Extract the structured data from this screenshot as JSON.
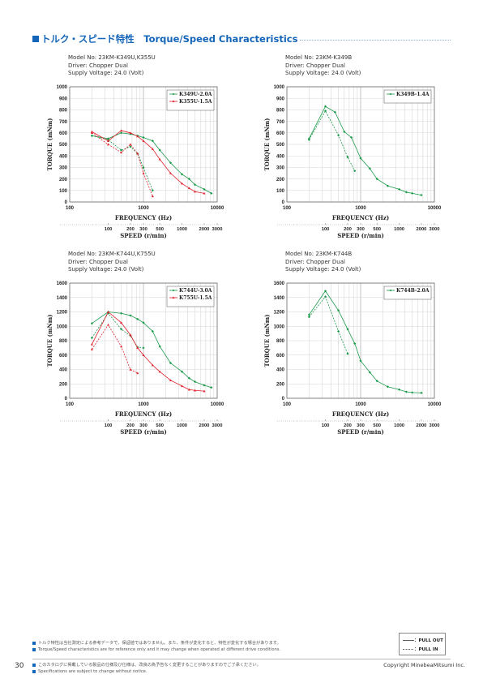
{
  "header": {
    "title": "トルク・スピード特性　Torque/Speed Characteristics"
  },
  "axis_labels": {
    "y": "TORQUE (mNm)",
    "x": "FREQUENCY (Hz)",
    "speed": "SPEED (r/min)"
  },
  "chart_data": [
    {
      "type": "line",
      "meta": [
        "Model No: 23KM-K349U,K355U",
        "Driver: Chopper Dual",
        "Supply Voltage: 24.0 (Volt)"
      ],
      "xlabel": "FREQUENCY (Hz)",
      "ylabel": "TORQUE (mNm)",
      "x_scale": "log",
      "xlim": [
        100,
        10000
      ],
      "ylim": [
        0,
        1000
      ],
      "x_ticks": [
        "100",
        "1000",
        "10000"
      ],
      "y_ticks": [
        0,
        100,
        200,
        300,
        400,
        500,
        600,
        700,
        800,
        900,
        1000
      ],
      "speed_axis": {
        "label": "SPEED (r/min)",
        "ticks": [
          100,
          200,
          300,
          500,
          1000,
          2000,
          3000
        ]
      },
      "series": [
        {
          "name": "K349U-2.0A",
          "color": "#1a9a4a",
          "style": "pull-out",
          "x": [
            200,
            333,
            500,
            666,
            833,
            1000,
            1333,
            1667,
            2333,
            3333,
            4167,
            5000,
            6667,
            8333
          ],
          "y": [
            575,
            550,
            600,
            590,
            575,
            560,
            530,
            450,
            340,
            240,
            200,
            150,
            110,
            75
          ]
        },
        {
          "name": "K349U-2.0A",
          "color": "#1a9a4a",
          "style": "pull-in",
          "x": [
            200,
            333,
            500,
            666,
            833,
            1000,
            1333
          ],
          "y": [
            575,
            540,
            450,
            480,
            420,
            300,
            100
          ]
        },
        {
          "name": "K355U-1.5A",
          "color": "#e0202a",
          "style": "pull-out",
          "x": [
            200,
            333,
            500,
            666,
            833,
            1000,
            1333,
            1667,
            2333,
            3333,
            4167,
            5000,
            6667
          ],
          "y": [
            610,
            530,
            620,
            600,
            570,
            530,
            460,
            370,
            250,
            160,
            120,
            90,
            75
          ]
        },
        {
          "name": "K355U-1.5A",
          "color": "#e0202a",
          "style": "pull-in",
          "x": [
            200,
            333,
            500,
            666,
            833,
            1000,
            1333
          ],
          "y": [
            600,
            500,
            430,
            500,
            420,
            250,
            50
          ]
        }
      ]
    },
    {
      "type": "line",
      "meta": [
        "Model No: 23KM-K349B",
        "Driver: Chopper Dual",
        "Supply Voltage: 24.0 (Volt)"
      ],
      "xlabel": "FREQUENCY (Hz)",
      "ylabel": "TORQUE (mNm)",
      "x_scale": "log",
      "xlim": [
        100,
        10000
      ],
      "ylim": [
        0,
        1000
      ],
      "x_ticks": [
        "100",
        "1000",
        "10000"
      ],
      "y_ticks": [
        0,
        100,
        200,
        300,
        400,
        500,
        600,
        700,
        800,
        900,
        1000
      ],
      "speed_axis": {
        "label": "SPEED (r/min)",
        "ticks": [
          100,
          200,
          300,
          500,
          1000,
          2000,
          3000
        ]
      },
      "series": [
        {
          "name": "K349B-1.4A",
          "color": "#1a9a4a",
          "style": "pull-out",
          "x": [
            200,
            333,
            450,
            600,
            750,
            1000,
            1333,
            1667,
            2333,
            3333,
            4167,
            5000,
            6667
          ],
          "y": [
            550,
            830,
            780,
            610,
            560,
            380,
            290,
            200,
            140,
            110,
            85,
            75,
            60
          ]
        },
        {
          "name": "K349B-1.4A",
          "color": "#1a9a4a",
          "style": "pull-in",
          "x": [
            200,
            333,
            500,
            666,
            833
          ],
          "y": [
            540,
            790,
            580,
            390,
            270
          ]
        }
      ]
    },
    {
      "type": "line",
      "meta": [
        "Model No: 23KM-K744U,K755U",
        "Driver: Chopper Dual",
        "Supply Voltage: 24.0 (Volt)"
      ],
      "xlabel": "FREQUENCY (Hz)",
      "ylabel": "TORQUE (mNm)",
      "x_scale": "log",
      "xlim": [
        100,
        10000
      ],
      "ylim": [
        0,
        1600
      ],
      "x_ticks": [
        "100",
        "1000",
        "10000"
      ],
      "y_ticks": [
        0,
        200,
        400,
        600,
        800,
        1000,
        1200,
        1400,
        1600
      ],
      "speed_axis": {
        "label": "SPEED (r/min)",
        "ticks": [
          100,
          200,
          300,
          500,
          1000,
          2000,
          3000
        ]
      },
      "series": [
        {
          "name": "K744U-3.0A",
          "color": "#1a9a4a",
          "style": "pull-out",
          "x": [
            200,
            333,
            500,
            666,
            833,
            1000,
            1333,
            1667,
            2333,
            3333,
            4167,
            5000,
            6667,
            8333
          ],
          "y": [
            1040,
            1200,
            1180,
            1150,
            1100,
            1050,
            930,
            720,
            490,
            370,
            280,
            230,
            180,
            150
          ]
        },
        {
          "name": "K744U-3.0A",
          "color": "#1a9a4a",
          "style": "pull-in",
          "x": [
            200,
            333,
            500,
            666,
            833,
            1000
          ],
          "y": [
            840,
            1180,
            960,
            870,
            710,
            700
          ]
        },
        {
          "name": "K755U-1.5A",
          "color": "#e0202a",
          "style": "pull-out",
          "x": [
            200,
            333,
            500,
            666,
            833,
            1000,
            1333,
            1667,
            2333,
            3333,
            4167,
            5000,
            6667
          ],
          "y": [
            750,
            1200,
            1050,
            880,
            700,
            600,
            460,
            370,
            250,
            170,
            120,
            110,
            100
          ]
        },
        {
          "name": "K755U-1.5A",
          "color": "#e0202a",
          "style": "pull-in",
          "x": [
            200,
            333,
            500,
            666,
            833
          ],
          "y": [
            680,
            1020,
            720,
            400,
            350
          ]
        }
      ]
    },
    {
      "type": "line",
      "meta": [
        "Model No: 23KM-K744B",
        "Driver: Chopper Dual",
        "Supply Voltage: 24.0 (Volt)"
      ],
      "xlabel": "FREQUENCY (Hz)",
      "ylabel": "TORQUE (mNm)",
      "x_scale": "log",
      "xlim": [
        100,
        10000
      ],
      "ylim": [
        0,
        1600
      ],
      "x_ticks": [
        "100",
        "1000",
        "10000"
      ],
      "y_ticks": [
        0,
        200,
        400,
        600,
        800,
        1000,
        1200,
        1400,
        1600
      ],
      "speed_axis": {
        "label": "SPEED (r/min)",
        "ticks": [
          100,
          200,
          300,
          500,
          1000,
          2000,
          3000
        ]
      },
      "series": [
        {
          "name": "K744B-2.0A",
          "color": "#1a9a4a",
          "style": "pull-out",
          "x": [
            200,
            333,
            500,
            666,
            833,
            1000,
            1333,
            1667,
            2333,
            3333,
            4167,
            5000,
            6667
          ],
          "y": [
            1160,
            1490,
            1220,
            960,
            760,
            520,
            360,
            240,
            160,
            120,
            90,
            80,
            75
          ]
        },
        {
          "name": "K744B-2.0A",
          "color": "#1a9a4a",
          "style": "pull-in",
          "x": [
            200,
            333,
            500,
            666
          ],
          "y": [
            1130,
            1410,
            930,
            620
          ]
        }
      ]
    }
  ],
  "footer": {
    "note1": "トルク特性は当社測定による参考データで、保証値ではありません。また、条件が変化すると、特性が変化する場合があります。",
    "note2": "Torque/Speed characteristics are for reference only and it may change when operated at different drive conditions.",
    "note3": "このカタログに掲載している製品の仕様及び仕様は、改良の為予告なく変更することがありますのでご了承ください。",
    "note4": "Specifications are subject to change without notice.",
    "legend_pullout": "：PULL OUT",
    "legend_pullin": "：PULL IN",
    "page_number": "30",
    "copyright": "Copyright MinebeaMitsumi Inc."
  }
}
